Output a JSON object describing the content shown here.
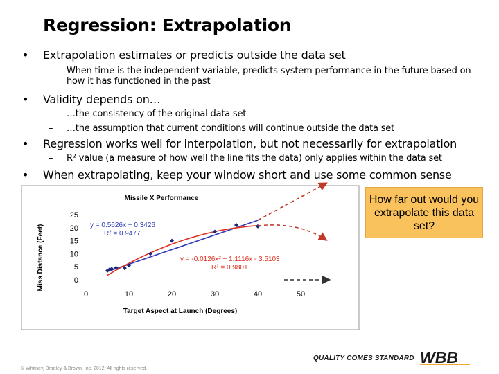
{
  "slide": {
    "title": "Regression: Extrapolation",
    "bullets": [
      {
        "text": "Extrapolation estimates or predicts outside the data set",
        "sub": [
          "When time is the independent variable, predicts system performance in the future based on how it has functioned in the past"
        ]
      },
      {
        "text": "Validity depends on…",
        "sub": [
          "…the consistency of the original data set",
          "…the assumption that current conditions will continue outside the data set"
        ]
      },
      {
        "text": "Regression works well for interpolation, but not necessarily for extrapolation",
        "sub": [
          "R² value (a measure of how well the line fits the data) only applies within the data set"
        ]
      },
      {
        "text": "When extrapolating, keep your window short and use some common sense",
        "sub": []
      }
    ],
    "bullet_glyph": "•",
    "dash_glyph": "–"
  },
  "callout": {
    "text": "How far out would you extrapolate this data set?"
  },
  "footer": {
    "copyright": "© Whitney, Bradley & Brown, Inc. 2012.  All rights reserved.",
    "tagline": "QUALITY COMES STANDARD",
    "logo_text": "WBB"
  },
  "colors": {
    "linear_fit": "#2e3bb8",
    "poly_fit": "#e03020",
    "points": "#1d2a7a",
    "callout_bg": "#f9c25c",
    "extrapolation_arrows": "#c0392b",
    "horizontal_arrow": "#333333"
  },
  "chart_data": {
    "type": "scatter",
    "title": "Missile X Performance",
    "xlabel": "Target Aspect at Launch (Degrees)",
    "ylabel": "Miss Distance (Feet)",
    "xlim": [
      0,
      50
    ],
    "ylim": [
      0,
      25
    ],
    "x_ticks": [
      "0",
      "10",
      "20",
      "30",
      "40",
      "50"
    ],
    "y_ticks": [
      "0",
      "5",
      "10",
      "15",
      "20",
      "25"
    ],
    "grid": false,
    "legend": "none",
    "points": [
      {
        "x": 5,
        "y": 3.5
      },
      {
        "x": 5.5,
        "y": 4
      },
      {
        "x": 6,
        "y": 4.2
      },
      {
        "x": 7,
        "y": 4.6
      },
      {
        "x": 9,
        "y": 4.5
      },
      {
        "x": 10,
        "y": 5.5
      },
      {
        "x": 15,
        "y": 10
      },
      {
        "x": 20,
        "y": 15
      },
      {
        "x": 30,
        "y": 18.5
      },
      {
        "x": 35,
        "y": 21
      },
      {
        "x": 40,
        "y": 20.5
      }
    ],
    "linear_fit": {
      "equation": "y = 0.5626x + 0.3426",
      "r2": "R² = 0.9477",
      "slope": 0.5626,
      "intercept": 0.3426,
      "x_range": [
        5,
        40
      ]
    },
    "poly_fit": {
      "equation": "y = -0.0126x² + 1.1116x - 3.5103",
      "r2": "R² = 0.9801",
      "coeffs": [
        -0.0126,
        1.1116,
        -3.5103
      ],
      "x_range": [
        5,
        40
      ]
    }
  }
}
